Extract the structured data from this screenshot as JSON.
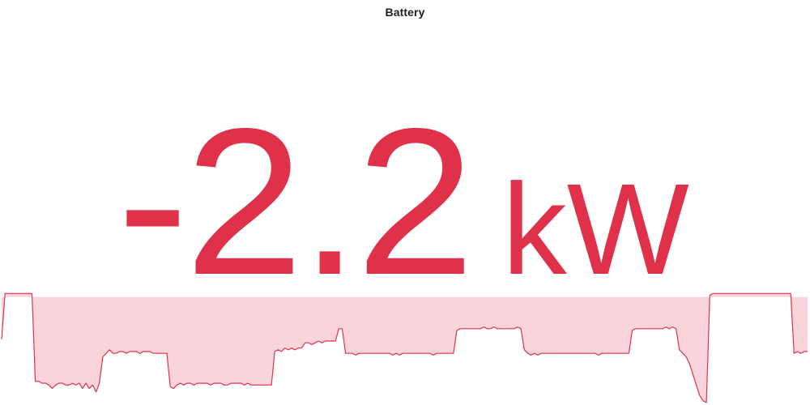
{
  "card": {
    "title": "Battery",
    "value": "-2.2",
    "unit": "kW",
    "accent_color": "#e0314b",
    "fill_color": "#f9d3d9"
  },
  "chart_data": {
    "type": "area",
    "title": "",
    "xlabel": "",
    "ylabel": "",
    "grid": false,
    "legend": "none",
    "baseline": 0,
    "ylim": [
      -3.0,
      0.2
    ],
    "series": [
      {
        "values": [
          -1.2,
          0.1,
          0.1,
          0.1,
          0.1,
          0.1,
          0.1,
          0.1,
          0.1,
          0.1,
          -2.4,
          -2.4,
          -2.45,
          -2.45,
          -2.5,
          -2.6,
          -2.5,
          -2.45,
          -2.45,
          -2.5,
          -2.5,
          -2.45,
          -2.5,
          -2.45,
          -2.6,
          -2.45,
          -2.6,
          -2.5,
          -2.7,
          -2.45,
          -1.7,
          -1.6,
          -1.5,
          -1.6,
          -1.6,
          -1.55,
          -1.55,
          -1.6,
          -1.55,
          -1.55,
          -1.55,
          -1.6,
          -1.55,
          -1.55,
          -1.55,
          -1.6,
          -1.6,
          -1.6,
          -1.6,
          -1.6,
          -2.55,
          -2.6,
          -2.5,
          -2.45,
          -2.5,
          -2.45,
          -2.45,
          -2.5,
          -2.45,
          -2.45,
          -2.45,
          -2.45,
          -2.5,
          -2.45,
          -2.45,
          -2.45,
          -2.5,
          -2.5,
          -2.45,
          -2.45,
          -2.45,
          -2.45,
          -2.5,
          -2.45,
          -2.5,
          -2.5,
          -2.5,
          -2.5,
          -2.5,
          -2.5,
          -2.5,
          -1.55,
          -1.5,
          -1.55,
          -1.45,
          -1.5,
          -1.45,
          -1.5,
          -1.45,
          -1.45,
          -1.3,
          -1.3,
          -1.35,
          -1.3,
          -1.25,
          -1.3,
          -1.25,
          -1.25,
          -1.25,
          -1.25,
          -0.9,
          -0.9,
          -1.6,
          -1.6,
          -1.6,
          -1.65,
          -1.6,
          -1.6,
          -1.6,
          -1.6,
          -1.6,
          -1.6,
          -1.6,
          -1.6,
          -1.6,
          -1.6,
          -1.65,
          -1.6,
          -1.65,
          -1.6,
          -1.6,
          -1.6,
          -1.6,
          -1.6,
          -1.6,
          -1.6,
          -1.6,
          -1.6,
          -1.65,
          -1.6,
          -1.6,
          -1.6,
          -1.6,
          -1.6,
          -1.6,
          -0.95,
          -0.9,
          -0.9,
          -0.9,
          -0.9,
          -0.9,
          -0.9,
          -0.9,
          -0.85,
          -0.9,
          -0.9,
          -0.85,
          -0.9,
          -0.9,
          -0.9,
          -0.9,
          -0.9,
          -0.9,
          -0.85,
          -0.9,
          -1.5,
          -1.6,
          -1.65,
          -1.6,
          -1.65,
          -1.6,
          -1.6,
          -1.6,
          -1.6,
          -1.6,
          -1.6,
          -1.6,
          -1.6,
          -1.6,
          -1.6,
          -1.6,
          -1.6,
          -1.6,
          -1.6,
          -1.6,
          -1.6,
          -1.6,
          -1.65,
          -1.6,
          -1.6,
          -1.6,
          -1.6,
          -1.6,
          -1.6,
          -1.6,
          -1.6,
          -1.6,
          -0.95,
          -0.9,
          -0.9,
          -0.9,
          -0.9,
          -0.9,
          -0.9,
          -0.9,
          -0.9,
          -0.9,
          -0.85,
          -0.9,
          -0.85,
          -0.9,
          -1.5,
          -1.6,
          -1.7,
          -1.9,
          -2.2,
          -2.5,
          -2.8,
          -2.95,
          -3.0,
          0.05,
          0.1,
          0.1,
          0.1,
          0.1,
          0.1,
          0.1,
          0.1,
          0.1,
          0.1,
          0.1,
          0.1,
          0.1,
          0.1,
          0.1,
          0.1,
          0.1,
          0.1,
          0.1,
          0.1,
          0.1,
          0.1,
          0.1,
          0.1,
          0.1,
          -1.6,
          -1.55,
          -1.6,
          -1.55,
          -1.55
        ]
      }
    ]
  }
}
